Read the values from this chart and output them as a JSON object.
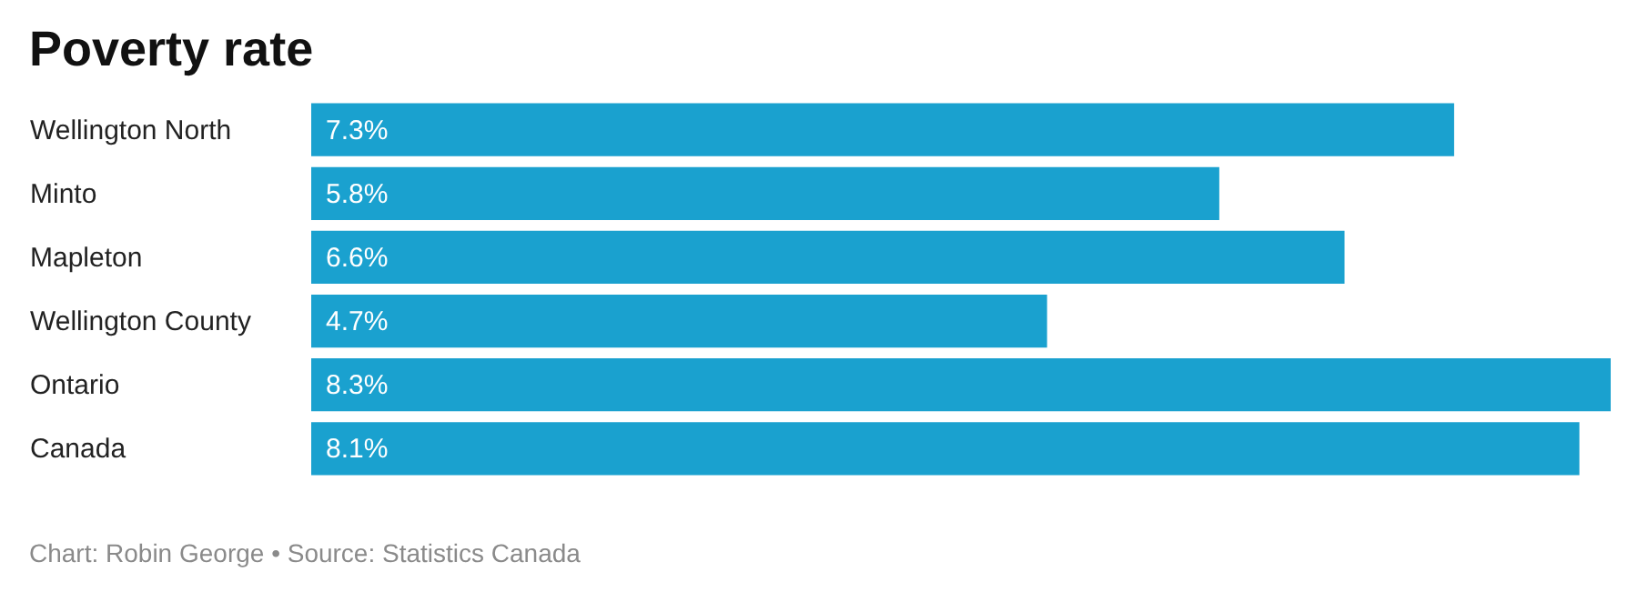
{
  "chart_data": {
    "type": "bar",
    "orientation": "horizontal",
    "title": "Poverty rate",
    "categories": [
      "Wellington North",
      "Minto",
      "Mapleton",
      "Wellington County",
      "Ontario",
      "Canada"
    ],
    "values": [
      7.3,
      5.8,
      6.6,
      4.7,
      8.3,
      8.1
    ],
    "value_labels": [
      "7.3%",
      "5.8%",
      "6.6%",
      "4.7%",
      "8.3%",
      "8.1%"
    ],
    "color": "#1aa1cf",
    "annotations": [
      "Chart: Robin George • Source: Statistics Canada"
    ]
  }
}
